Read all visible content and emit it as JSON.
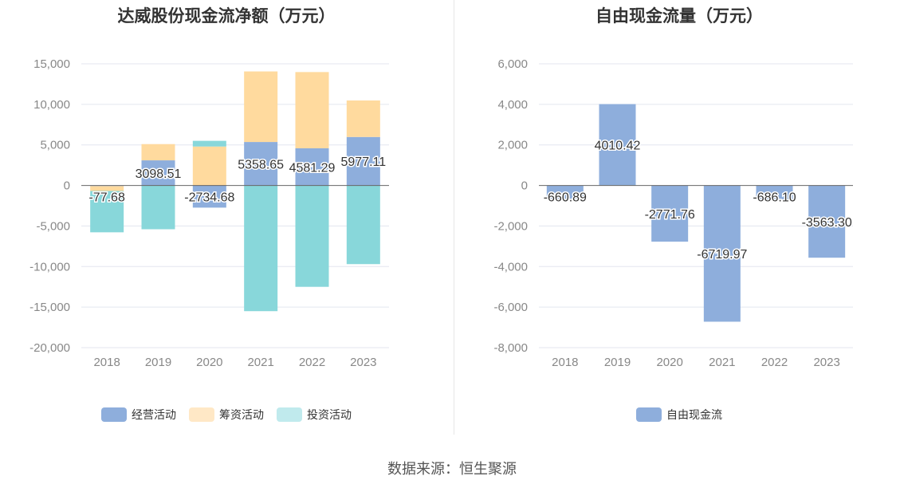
{
  "source_text": "数据来源：恒生聚源",
  "chart_data": [
    {
      "type": "bar",
      "stacked": true,
      "title": "达威股份现金流净额（万元）",
      "categories": [
        "2018",
        "2019",
        "2020",
        "2021",
        "2022",
        "2023"
      ],
      "ylim": [
        -20000,
        15000
      ],
      "yticks": [
        15000,
        10000,
        5000,
        0,
        -5000,
        -10000,
        -15000,
        -20000
      ],
      "ytick_labels": [
        "15,000",
        "10,000",
        "5,000",
        "0",
        "-5,000",
        "-10,000",
        "-15,000",
        "-20,000"
      ],
      "grid": true,
      "legend_position": "bottom",
      "series": [
        {
          "name": "经营活动",
          "color": "#8eaedc",
          "values": [
            -77.68,
            3098.51,
            -2734.68,
            5358.65,
            4581.29,
            5977.11
          ],
          "labels": [
            "-77.68",
            "3098.51",
            "-2734.68",
            "5358.65",
            "4581.29",
            "5977.11"
          ]
        },
        {
          "name": "筹资活动",
          "color": "#ffda9e",
          "values": [
            -600,
            2000,
            4800,
            8700,
            9400,
            4500
          ]
        },
        {
          "name": "投资活动",
          "color": "#88d7da",
          "values": [
            -5100,
            -5400,
            700,
            -15500,
            -12500,
            -9700
          ]
        }
      ],
      "legend_colors": [
        "#8eaedc",
        "#ffe8c6",
        "#c0eaed"
      ]
    },
    {
      "type": "bar",
      "title": "自由现金流量（万元）",
      "categories": [
        "2018",
        "2019",
        "2020",
        "2021",
        "2022",
        "2023"
      ],
      "ylim": [
        -8000,
        6000
      ],
      "yticks": [
        6000,
        4000,
        2000,
        0,
        -2000,
        -4000,
        -6000,
        -8000
      ],
      "ytick_labels": [
        "6,000",
        "4,000",
        "2,000",
        "0",
        "-2,000",
        "-4,000",
        "-6,000",
        "-8,000"
      ],
      "grid": true,
      "legend_position": "bottom",
      "series": [
        {
          "name": "自由现金流",
          "color": "#8eaedc",
          "values": [
            -660.89,
            4010.42,
            -2771.76,
            -6719.97,
            -686.1,
            -3563.3
          ],
          "labels": [
            "-660.89",
            "4010.42",
            "-2771.76",
            "-6719.97",
            "-686.10",
            "-3563.30"
          ]
        }
      ],
      "legend_colors": [
        "#8eaedc"
      ]
    }
  ]
}
